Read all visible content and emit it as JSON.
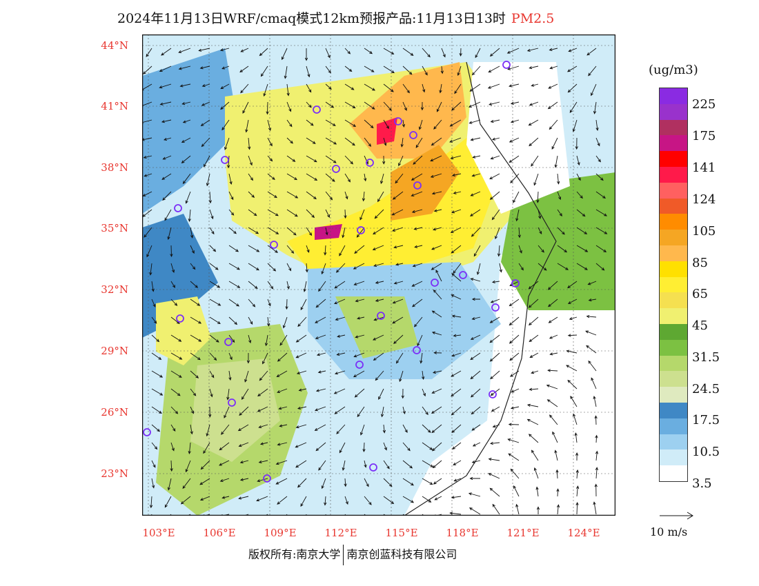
{
  "title": {
    "main": "2024年11月13日WRF/cmaq模式12km预报产品:11月13日13时",
    "pollutant": "PM2.5"
  },
  "lat_labels": [
    "44°N",
    "41°N",
    "38°N",
    "35°N",
    "32°N",
    "29°N",
    "26°N",
    "23°N"
  ],
  "lon_labels": [
    "103°E",
    "106°E",
    "109°E",
    "112°E",
    "115°E",
    "118°E",
    "121°E",
    "124°E"
  ],
  "legend": {
    "unit": "(ug/m3)",
    "labels": [
      "225",
      "175",
      "141",
      "124",
      "105",
      "85",
      "65",
      "45",
      "31.5",
      "24.5",
      "17.5",
      "10.5",
      "3.5"
    ],
    "colors": [
      "#8a2be2",
      "#9932cc",
      "#b03060",
      "#c71585",
      "#ff0000",
      "#ff1a4a",
      "#ff6060",
      "#f05a28",
      "#ff8c00",
      "#f5a623",
      "#ffb84d",
      "#ffe000",
      "#ffee33",
      "#f5e050",
      "#f0f070",
      "#5ea832",
      "#7cc142",
      "#b5d86b",
      "#cde08f",
      "#dfeabf",
      "#3f88c5",
      "#6aaee0",
      "#9dd0f0",
      "#d0ecf8",
      "#ffffff"
    ],
    "wind_ref": "10 m/s"
  },
  "footer": {
    "copyright": "版权所有:南京大学",
    "company": "南京创蓝科技有限公司"
  }
}
